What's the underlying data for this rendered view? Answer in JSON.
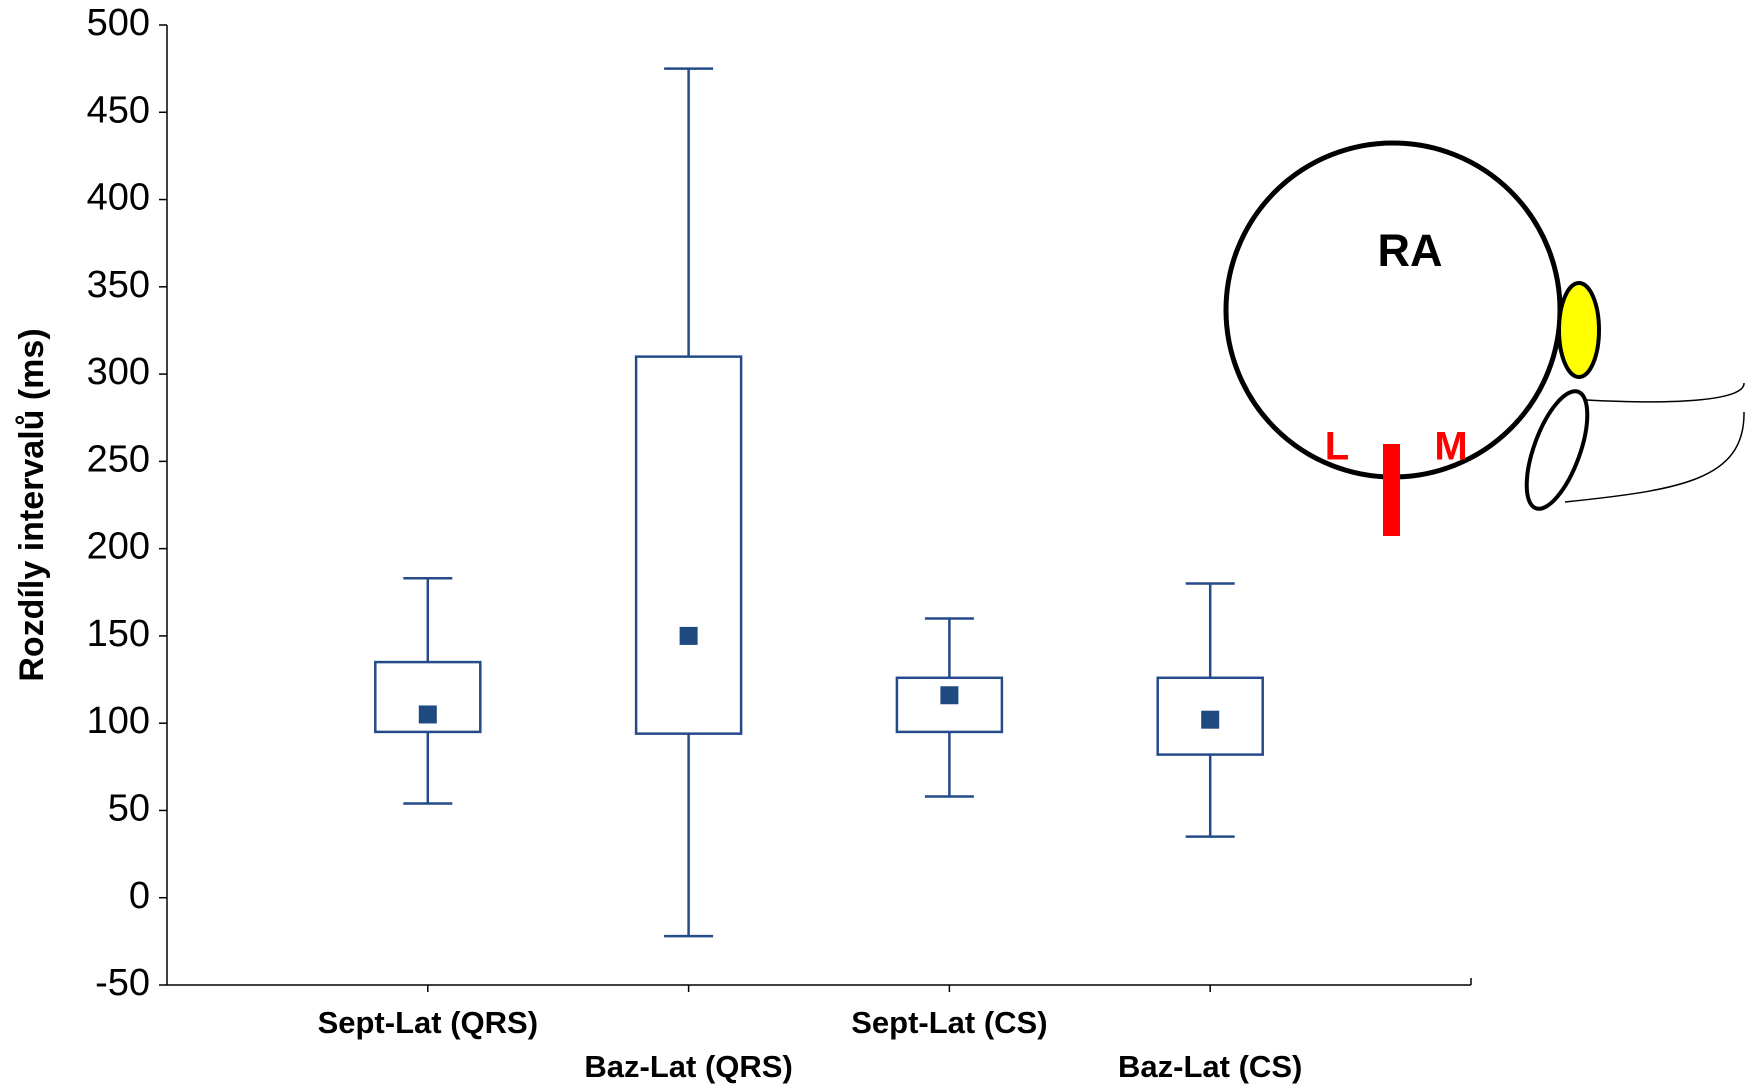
{
  "chart_data": {
    "type": "box",
    "y_label": "Rozdíly intervalů (ms)",
    "categories": [
      "Sept-Lat (QRS)",
      "Baz-Lat (QRS)",
      "Sept-Lat (CS)",
      "Baz-Lat (CS)"
    ],
    "whisker_low": [
      54,
      -22,
      58,
      35
    ],
    "box_low": [
      95,
      94,
      95,
      82
    ],
    "mean": [
      105,
      150,
      116,
      102
    ],
    "box_high": [
      135,
      310,
      126,
      126
    ],
    "whisker_high": [
      183,
      475,
      160,
      180
    ],
    "color": "#254a8a",
    "ylim": [
      -50,
      500
    ],
    "yticks": [
      -50,
      0,
      50,
      100,
      150,
      200,
      250,
      300,
      350,
      400,
      450,
      500
    ],
    "annotations": [
      "RA",
      "L",
      "M"
    ]
  }
}
